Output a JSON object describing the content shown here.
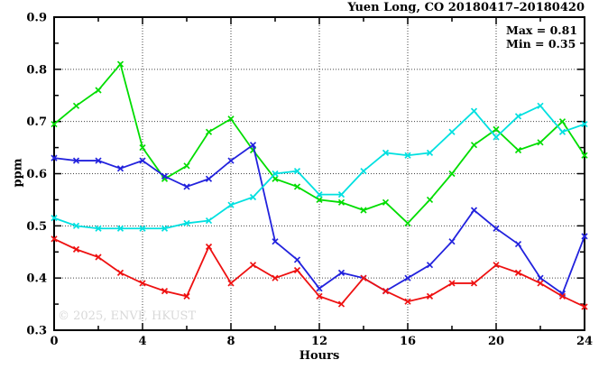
{
  "watermark": "© 2025, ENVF, HKUST",
  "chart_data": {
    "type": "line",
    "title": "Yuen Long, CO 20180417–20180420",
    "ylabel": "ppm",
    "xlabel": "Hours",
    "annotations": [
      "Max = 0.81",
      "Min = 0.35"
    ],
    "xlim": [
      0,
      24
    ],
    "ylim": [
      0.3,
      0.9
    ],
    "x_major_ticks": [
      0,
      4,
      8,
      12,
      16,
      20,
      24
    ],
    "x_minor_ticks": [
      2,
      6,
      10,
      14,
      18,
      22
    ],
    "y_major_ticks": [
      0.3,
      0.4,
      0.5,
      0.6,
      0.7,
      0.8,
      0.9
    ],
    "y_minor_ticks": [
      0.35,
      0.45,
      0.55,
      0.65,
      0.75,
      0.85
    ],
    "grid": true,
    "legend": "none",
    "marker": "x",
    "x": [
      0,
      1,
      2,
      3,
      4,
      5,
      6,
      7,
      8,
      9,
      10,
      11,
      12,
      13,
      14,
      15,
      16,
      17,
      18,
      19,
      20,
      21,
      22,
      23,
      24
    ],
    "series": [
      {
        "name": "series-green",
        "color": "#00dd00",
        "values": [
          0.695,
          0.73,
          0.76,
          0.81,
          0.65,
          0.59,
          0.615,
          0.68,
          0.705,
          0.645,
          0.59,
          0.575,
          0.55,
          0.545,
          0.53,
          0.545,
          0.505,
          0.55,
          0.6,
          0.655,
          0.685,
          0.645,
          0.66,
          0.7,
          0.635
        ]
      },
      {
        "name": "series-blue",
        "color": "#2222dd",
        "values": [
          0.63,
          0.625,
          0.625,
          0.61,
          0.625,
          0.595,
          0.575,
          0.59,
          0.625,
          0.655,
          0.47,
          0.435,
          0.38,
          0.41,
          0.4,
          0.375,
          0.4,
          0.425,
          0.47,
          0.53,
          0.495,
          0.465,
          0.4,
          0.37,
          0.48
        ]
      },
      {
        "name": "series-cyan",
        "color": "#00e0e0",
        "values": [
          0.515,
          0.5,
          0.495,
          0.495,
          0.495,
          0.495,
          0.505,
          0.51,
          0.54,
          0.555,
          0.6,
          0.605,
          0.56,
          0.56,
          0.605,
          0.64,
          0.635,
          0.64,
          0.68,
          0.72,
          0.67,
          0.71,
          0.73,
          0.68,
          0.695
        ]
      },
      {
        "name": "series-red",
        "color": "#ee1111",
        "values": [
          0.475,
          0.455,
          0.44,
          0.41,
          0.39,
          0.375,
          0.365,
          0.46,
          0.39,
          0.425,
          0.4,
          0.415,
          0.365,
          0.35,
          0.4,
          0.375,
          0.355,
          0.365,
          0.39,
          0.39,
          0.425,
          0.41,
          0.39,
          0.365,
          0.345
        ]
      }
    ]
  }
}
